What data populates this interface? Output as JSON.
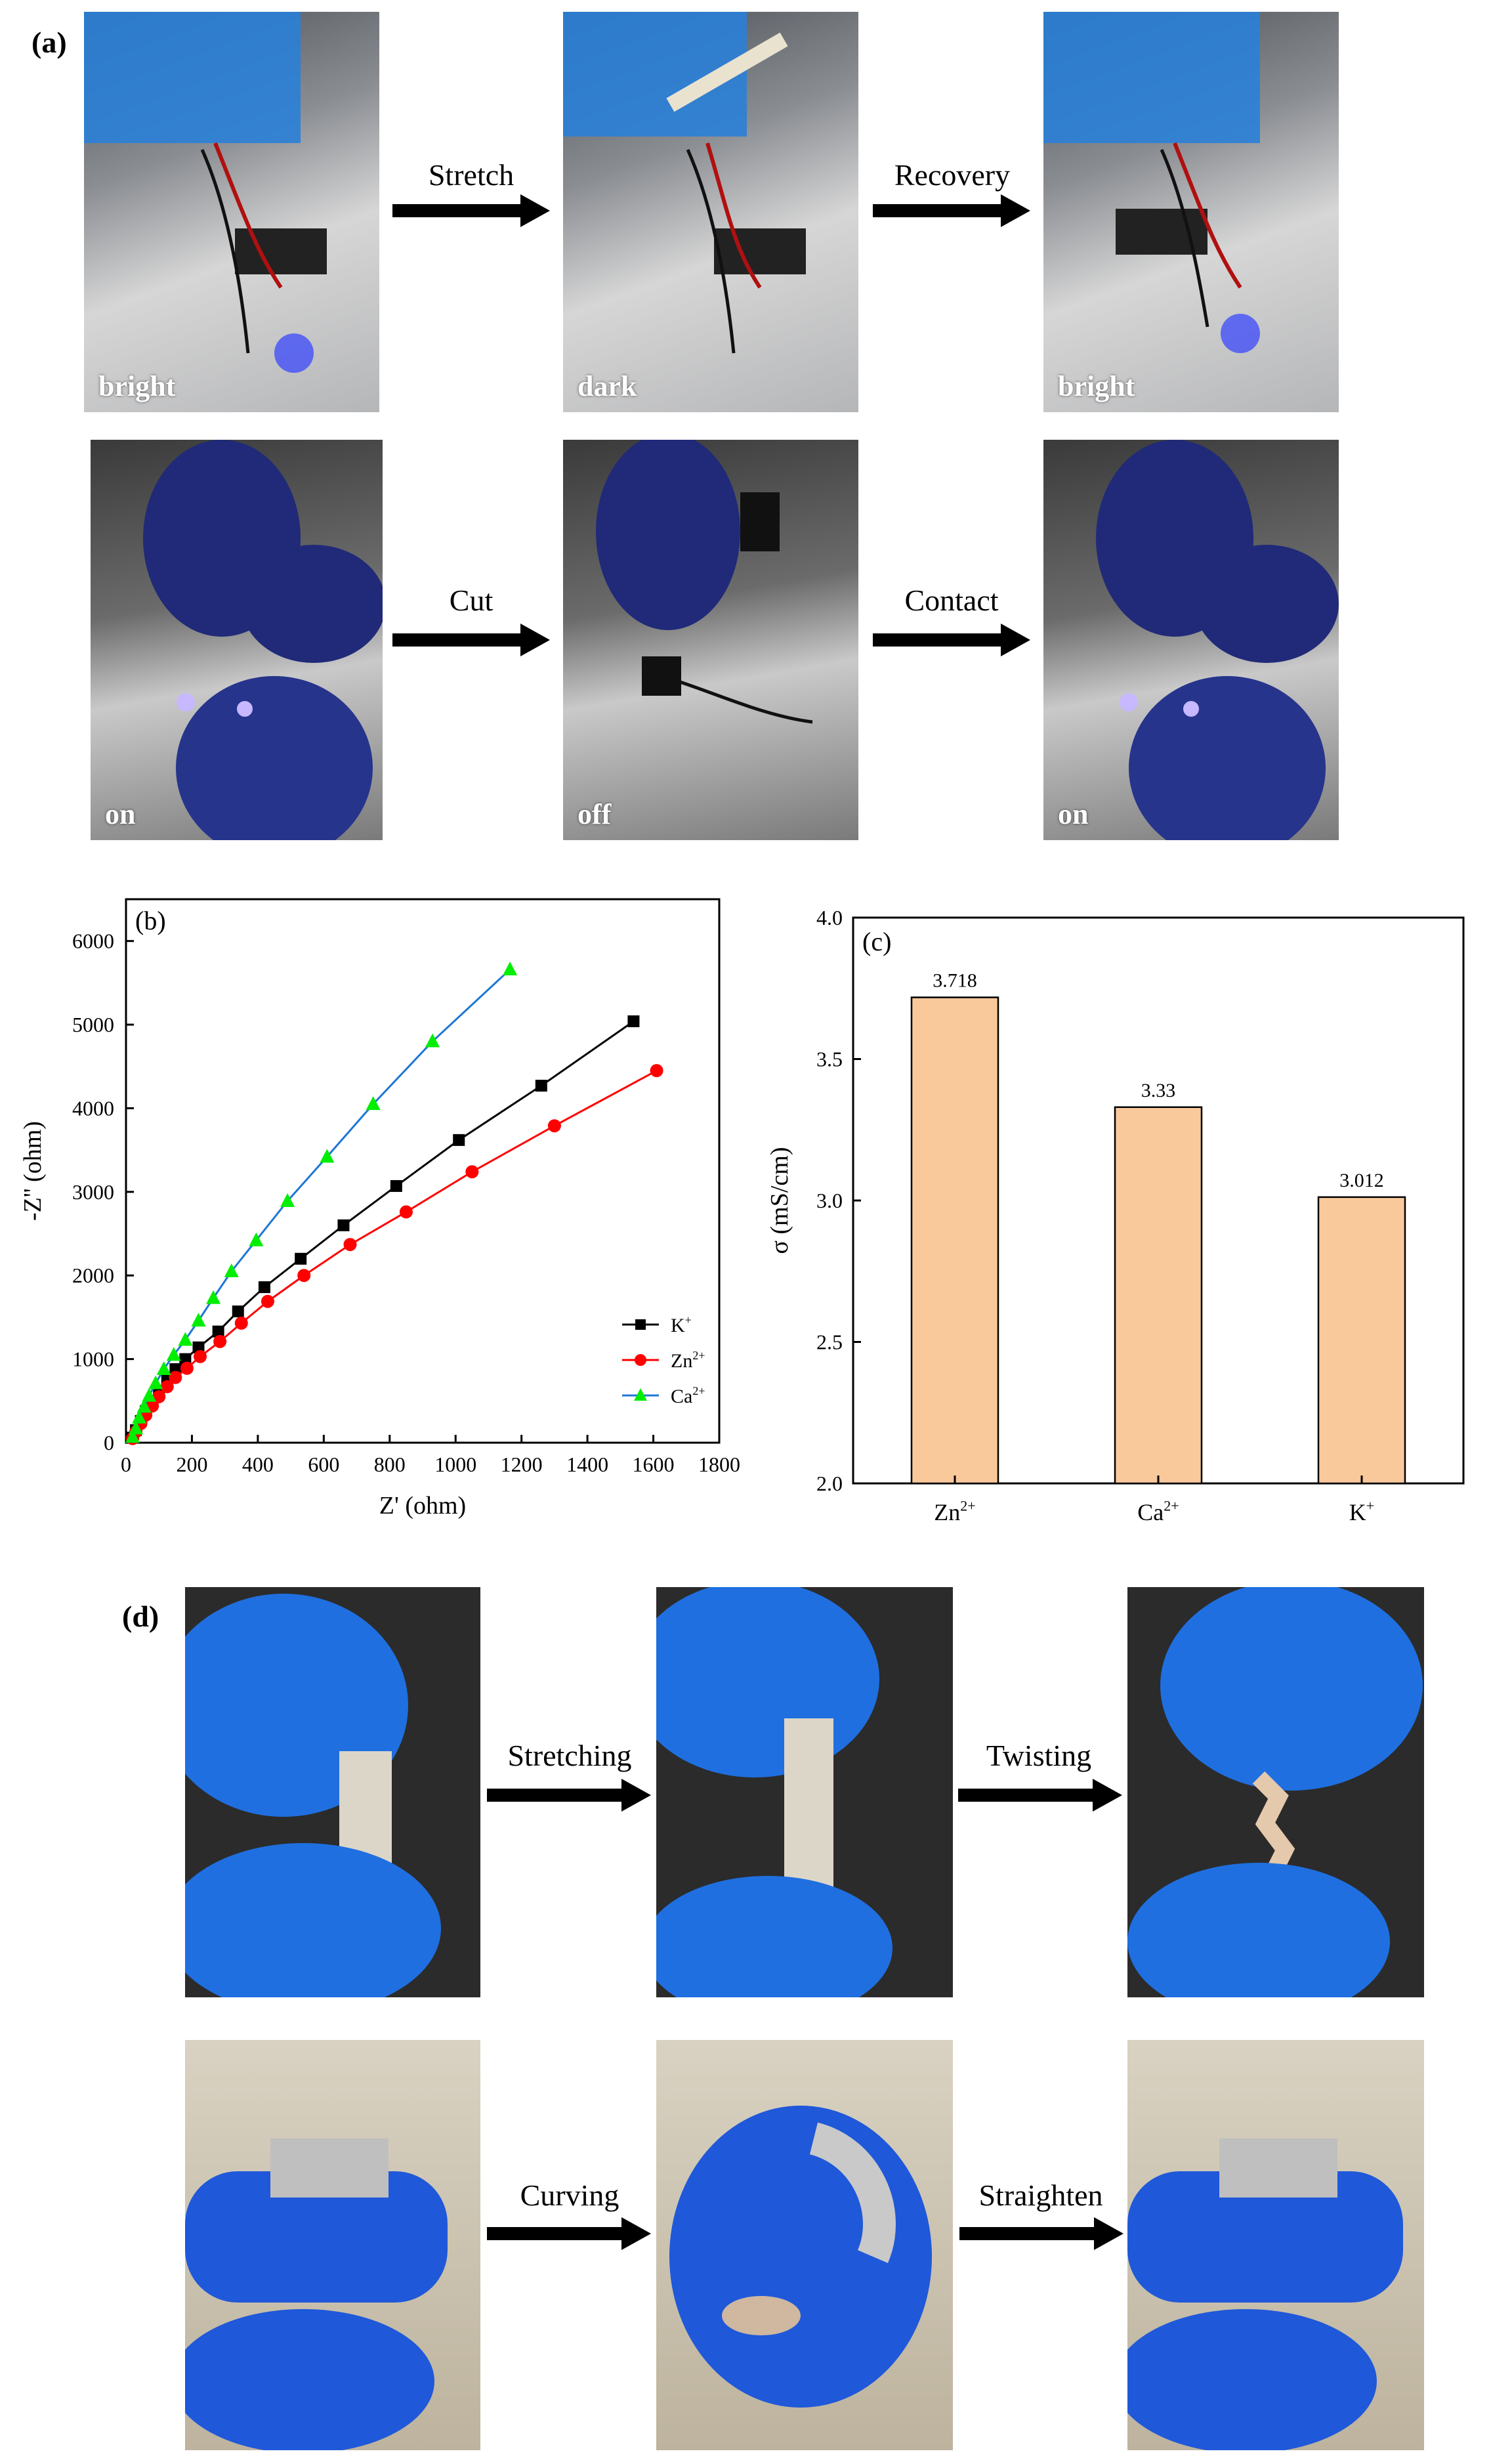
{
  "panel_a": {
    "letter": "(a)",
    "row1": {
      "photos": [
        {
          "caption": "bright"
        },
        {
          "caption": "dark"
        },
        {
          "caption": "bright"
        }
      ],
      "arrows": [
        "Stretch",
        "Recovery"
      ]
    },
    "row2": {
      "photos": [
        {
          "caption": "on"
        },
        {
          "caption": "off"
        },
        {
          "caption": "on"
        }
      ],
      "arrows": [
        "Cut",
        "Contact"
      ]
    }
  },
  "panel_d": {
    "letter": "(d)",
    "row1": {
      "arrows": [
        "Stretching",
        "Twisting"
      ]
    },
    "row2": {
      "arrows": [
        "Curving",
        "Straighten"
      ]
    }
  },
  "chart_data": [
    {
      "type": "scatter",
      "panel": "(b)",
      "xlabel": "Z' (ohm)",
      "ylabel": "-Z'' (ohm)",
      "xlim": [
        0,
        1800
      ],
      "ylim": [
        0,
        6500
      ],
      "xticks": [
        "0",
        "200",
        "400",
        "600",
        "800",
        "1000",
        "1200",
        "1400",
        "1600",
        "1800"
      ],
      "yticks": [
        "0",
        "1000",
        "2000",
        "3000",
        "4000",
        "5000",
        "6000"
      ],
      "legend_position": "lower-right",
      "series": [
        {
          "name": "K",
          "sup": "+",
          "color": "#000000",
          "marker": "square",
          "x": [
            20,
            30,
            45,
            60,
            80,
            100,
            125,
            150,
            180,
            220,
            280,
            340,
            420,
            530,
            660,
            820,
            1010,
            1260,
            1540
          ],
          "y": [
            60,
            150,
            260,
            380,
            500,
            620,
            760,
            880,
            1000,
            1140,
            1330,
            1570,
            1860,
            2200,
            2600,
            3070,
            3620,
            4270,
            5040
          ]
        },
        {
          "name": "Zn",
          "sup": "2+",
          "color": "#ff0000",
          "marker": "circle",
          "x": [
            20,
            30,
            45,
            60,
            80,
            100,
            125,
            150,
            185,
            225,
            285,
            350,
            430,
            540,
            680,
            850,
            1050,
            1300,
            1610
          ],
          "y": [
            50,
            130,
            230,
            330,
            440,
            550,
            670,
            780,
            890,
            1030,
            1210,
            1430,
            1690,
            2000,
            2370,
            2760,
            3240,
            3790,
            4450
          ]
        },
        {
          "name": "Ca",
          "sup": "2+",
          "color": "#00ee00",
          "line_color": "#1f77d4",
          "marker": "triangle",
          "x": [
            20,
            30,
            40,
            55,
            70,
            90,
            115,
            145,
            180,
            220,
            265,
            320,
            395,
            490,
            610,
            750,
            930,
            1165
          ],
          "y": [
            70,
            170,
            300,
            430,
            560,
            710,
            880,
            1050,
            1230,
            1460,
            1730,
            2050,
            2420,
            2890,
            3420,
            4050,
            4800,
            5660
          ]
        }
      ]
    },
    {
      "type": "bar",
      "panel": "(c)",
      "xlabel": "",
      "ylabel": "σ (mS/cm)",
      "ylim": [
        2.0,
        4.0
      ],
      "yticks": [
        "2.0",
        "2.5",
        "3.0",
        "3.5",
        "4.0"
      ],
      "categories": [
        {
          "base": "Zn",
          "sup": "2+"
        },
        {
          "base": "Ca",
          "sup": "2+"
        },
        {
          "base": "K",
          "sup": "+"
        }
      ],
      "values": [
        3.718,
        3.33,
        3.012
      ],
      "value_labels": [
        "3.718",
        "3.33",
        "3.012"
      ],
      "bar_color": "#f9c89b"
    }
  ]
}
